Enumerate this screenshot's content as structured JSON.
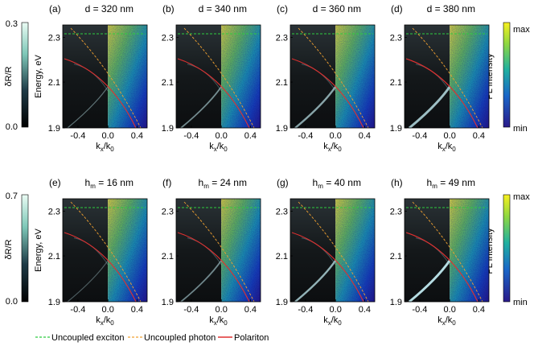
{
  "figure": {
    "axes": {
      "ylabel": "Energy, eV",
      "yticks": [
        "1.9",
        "2.1",
        "2.3"
      ],
      "xticks": [
        "-0.4",
        "0.0",
        "0.4"
      ],
      "xlabel": {
        "main": "k",
        "sub1": "x",
        "sep": "/k",
        "sub2": "0"
      }
    },
    "colorbar_refl": {
      "label": "δR/R",
      "row1_ticks": [
        "0.3",
        "0.0"
      ],
      "row2_ticks": [
        "0.7",
        "0.0"
      ]
    },
    "colorbar_pl": {
      "label": "PL Intensity",
      "max": "max",
      "min": "min"
    },
    "row1": [
      {
        "tag": "(a)",
        "title": "d = 320 nm"
      },
      {
        "tag": "(b)",
        "title": "d = 340 nm"
      },
      {
        "tag": "(c)",
        "title": "d = 360 nm"
      },
      {
        "tag": "(d)",
        "title": "d = 380 nm"
      }
    ],
    "row2": [
      {
        "tag": "(e)",
        "prefix": "h",
        "sub": "m",
        "value": " = 16 nm"
      },
      {
        "tag": "(f)",
        "prefix": "h",
        "sub": "m",
        "value": " = 24 nm"
      },
      {
        "tag": "(g)",
        "prefix": "h",
        "sub": "m",
        "value": " = 40 nm"
      },
      {
        "tag": "(h)",
        "prefix": "h",
        "sub": "m",
        "value": " = 49 nm"
      }
    ],
    "legend": [
      {
        "label": "Uncoupled exciton",
        "color": "#2ecc40"
      },
      {
        "label": "Uncoupled photon",
        "color": "#f0a030"
      },
      {
        "label": "Polariton",
        "color": "#e03030"
      }
    ]
  }
}
